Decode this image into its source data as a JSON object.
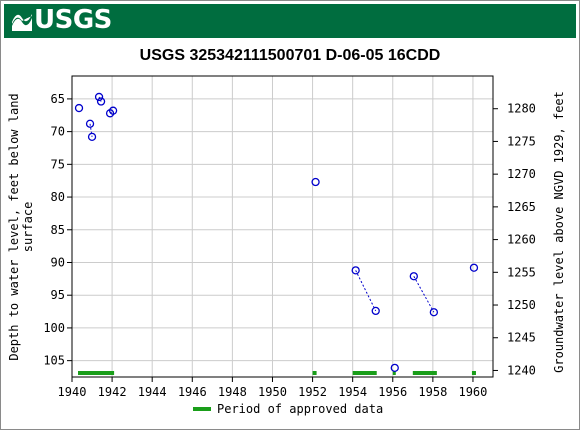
{
  "header": {
    "logo_text": "USGS",
    "background": "#006d3f"
  },
  "chart_data": {
    "type": "scatter",
    "title": "USGS 325342111500701 D-06-05 16CDD",
    "ylabel_left": "Depth to water level, feet below land surface",
    "ylabel_left_lines": [
      "Depth to water level, feet below land",
      "surface"
    ],
    "ylabel_right": "Groundwater level above NGVD 1929, feet",
    "xlim": [
      1940,
      1961
    ],
    "ylim_left": [
      107.5,
      61.5
    ],
    "ylim_right_relation": "elevation = 1346.5 - depth",
    "x_ticks": [
      "1940",
      "1942",
      "1944",
      "1946",
      "1948",
      "1950",
      "1952",
      "1954",
      "1956",
      "1958",
      "1960"
    ],
    "y_ticks_left": [
      "65",
      "70",
      "75",
      "80",
      "85",
      "90",
      "95",
      "100",
      "105"
    ],
    "y_ticks_right": [
      "1280",
      "1275",
      "1270",
      "1265",
      "1260",
      "1255",
      "1250",
      "1245",
      "1240"
    ],
    "points": [
      {
        "x": 1940.35,
        "y": 66.4
      },
      {
        "x": 1940.9,
        "y": 68.8
      },
      {
        "x": 1941.0,
        "y": 70.8
      },
      {
        "x": 1941.35,
        "y": 64.7
      },
      {
        "x": 1941.45,
        "y": 65.4
      },
      {
        "x": 1941.9,
        "y": 67.2
      },
      {
        "x": 1942.05,
        "y": 66.8
      },
      {
        "x": 1952.15,
        "y": 77.7
      },
      {
        "x": 1954.15,
        "y": 91.2
      },
      {
        "x": 1955.15,
        "y": 97.4
      },
      {
        "x": 1956.1,
        "y": 106.1
      },
      {
        "x": 1957.05,
        "y": 92.1
      },
      {
        "x": 1958.05,
        "y": 97.6
      },
      {
        "x": 1960.05,
        "y": 90.8
      }
    ],
    "connected_segments": [
      [
        1,
        2
      ],
      [
        3,
        4
      ],
      [
        5,
        6
      ],
      [
        8,
        9
      ],
      [
        11,
        12
      ]
    ],
    "approved_periods": [
      [
        1940.3,
        1942.1
      ],
      [
        1952.0,
        1952.2
      ],
      [
        1954.0,
        1955.2
      ],
      [
        1956.0,
        1956.15
      ],
      [
        1957.0,
        1958.2
      ],
      [
        1959.95,
        1960.15
      ]
    ],
    "legend_label": "Period of approved data",
    "colors": {
      "points": "#0000cc",
      "approved": "#1a9e1a",
      "grid": "#cccccc"
    }
  }
}
